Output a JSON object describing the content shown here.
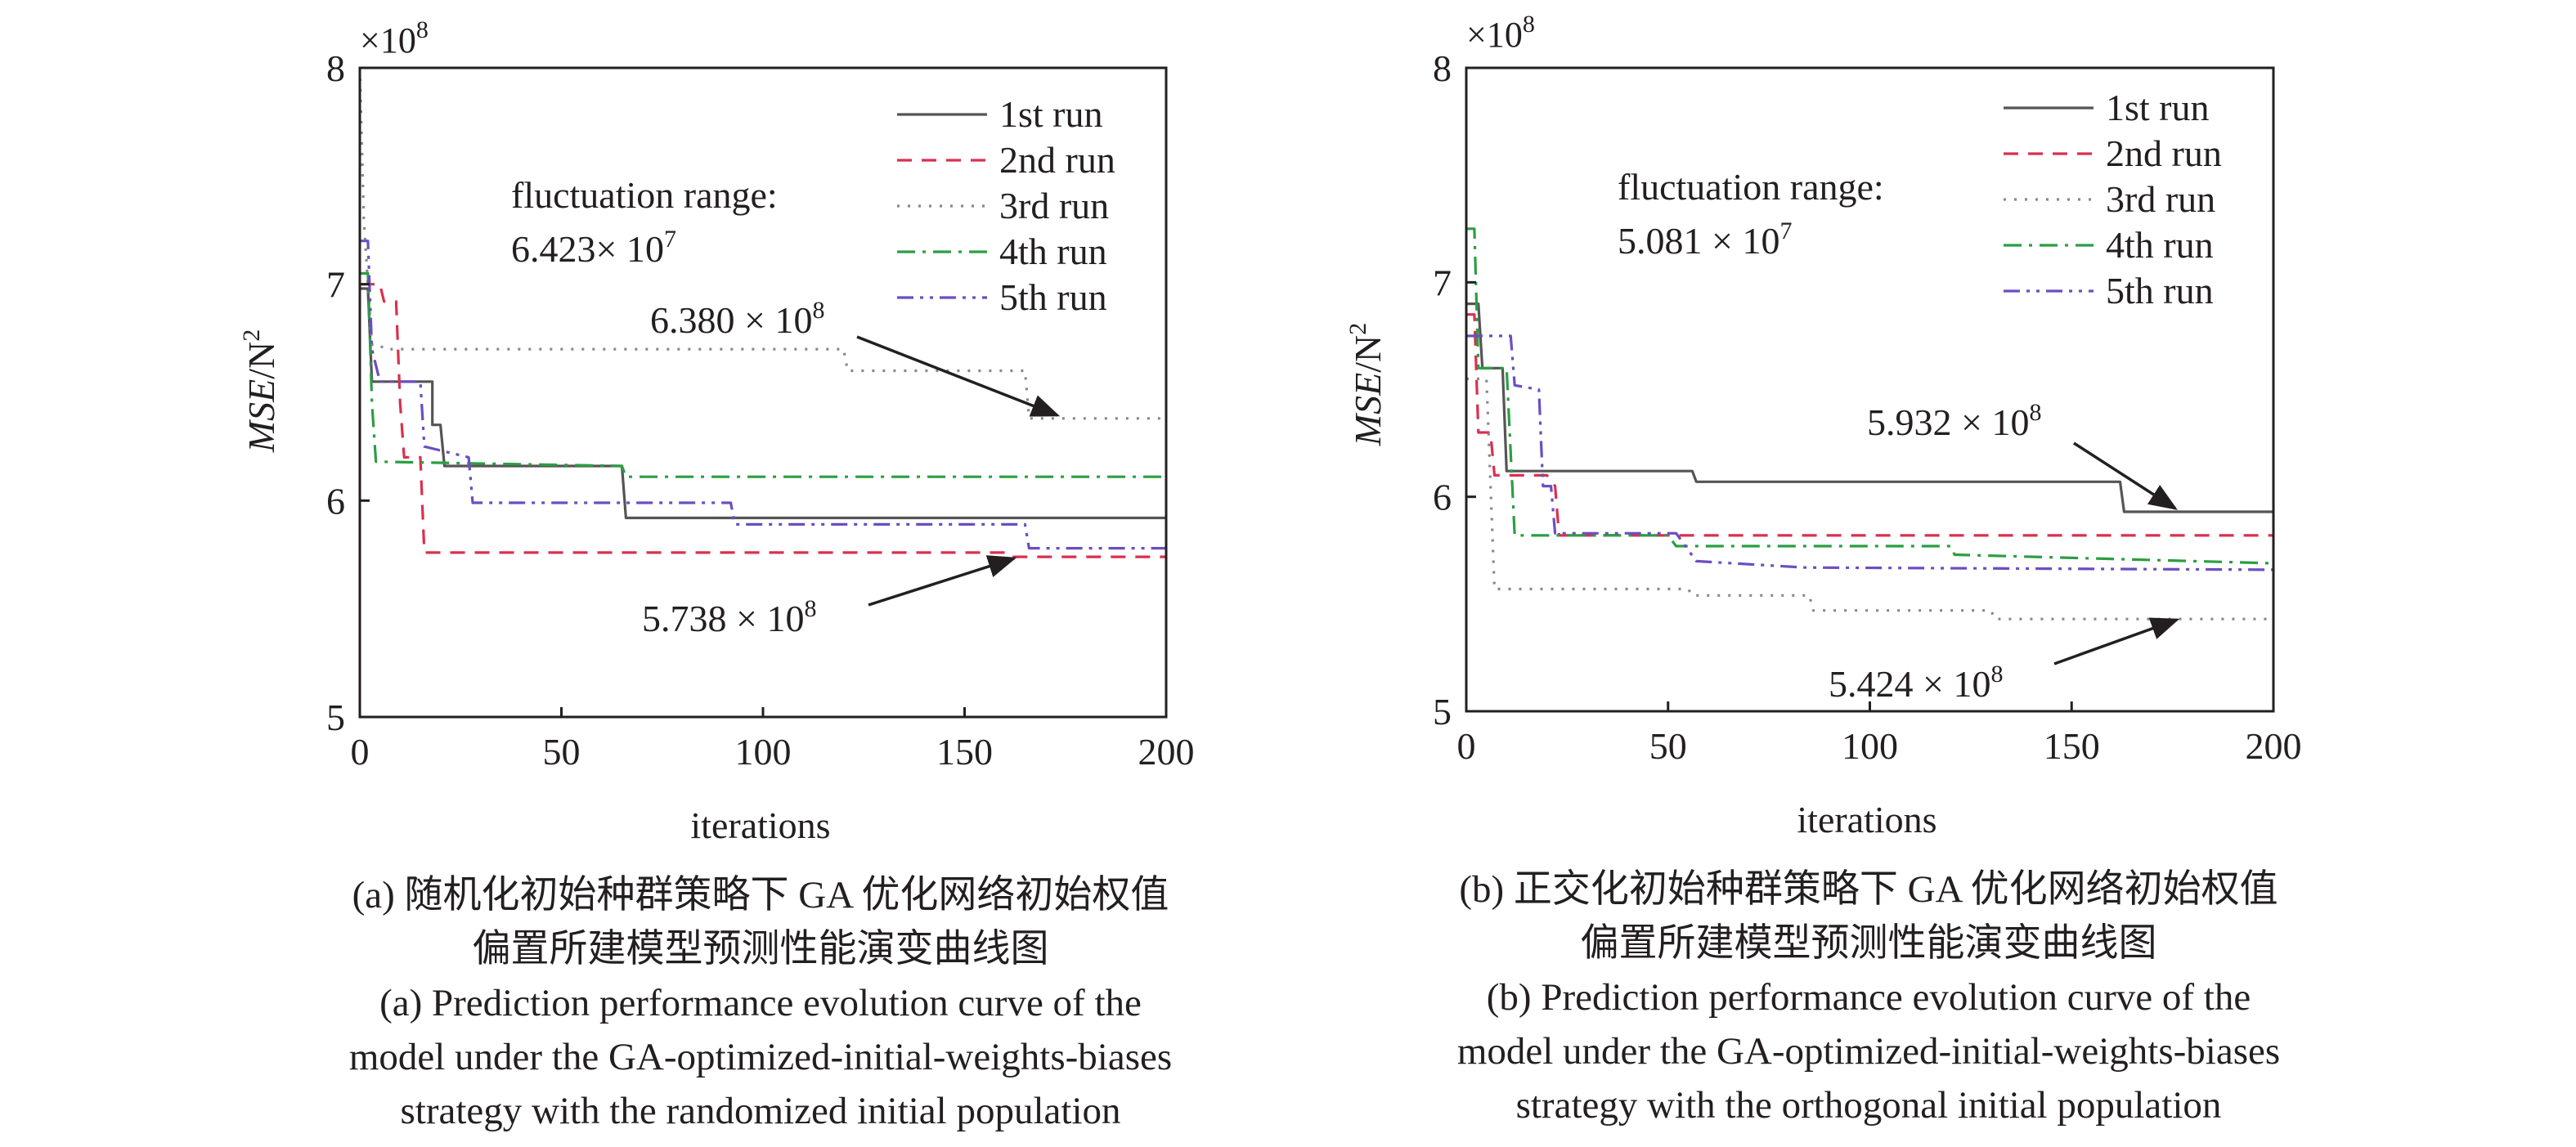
{
  "chart_data": [
    {
      "type": "line",
      "panel": "a",
      "xlabel": "iterations",
      "ylabel_main": "MSE",
      "ylabel_unit": "/N",
      "ylabel_sup": "2",
      "y_multiplier_base": "×10",
      "y_multiplier_exp": "8",
      "xlim": [
        0,
        200
      ],
      "ylim": [
        5,
        8
      ],
      "xticks": [
        "0",
        "50",
        "100",
        "150",
        "200"
      ],
      "yticks": [
        "5",
        "6",
        "7",
        "8"
      ],
      "grid": false,
      "legend_position": "top-right",
      "series": [
        {
          "name": "1st  run",
          "color": "#555555",
          "dash": "solid",
          "points": [
            [
              0,
              6.98
            ],
            [
              2,
              6.98
            ],
            [
              3,
              6.55
            ],
            [
              18,
              6.55
            ],
            [
              18,
              6.35
            ],
            [
              20,
              6.35
            ],
            [
              21,
              6.16
            ],
            [
              65,
              6.16
            ],
            [
              66,
              5.92
            ],
            [
              200,
              5.92
            ]
          ]
        },
        {
          "name": "2nd run",
          "color": "#d9304f",
          "dash": "dashed",
          "points": [
            [
              0,
              7.0
            ],
            [
              5,
              7.0
            ],
            [
              6,
              6.92
            ],
            [
              9,
              6.92
            ],
            [
              10,
              6.45
            ],
            [
              11,
              6.2
            ],
            [
              15,
              6.2
            ],
            [
              16,
              5.76
            ],
            [
              160,
              5.76
            ],
            [
              161,
              5.74
            ],
            [
              200,
              5.74
            ]
          ]
        },
        {
          "name": "3rd run",
          "color": "#888888",
          "dash": "dotted",
          "points": [
            [
              0,
              8.0
            ],
            [
              1,
              7.3
            ],
            [
              2,
              7.0
            ],
            [
              3,
              6.72
            ],
            [
              5,
              6.72
            ],
            [
              6,
              6.7
            ],
            [
              120,
              6.7
            ],
            [
              121,
              6.6
            ],
            [
              165,
              6.6
            ],
            [
              166,
              6.38
            ],
            [
              200,
              6.38
            ]
          ]
        },
        {
          "name": "4th run",
          "color": "#2b9e43",
          "dash": "dashdot",
          "points": [
            [
              0,
              7.05
            ],
            [
              2,
              7.05
            ],
            [
              3,
              6.45
            ],
            [
              4,
              6.18
            ],
            [
              65,
              6.16
            ],
            [
              66,
              6.11
            ],
            [
              200,
              6.11
            ]
          ]
        },
        {
          "name": "5th run",
          "color": "#6b4ec2",
          "dash": "dashdotdot",
          "points": [
            [
              0,
              7.2
            ],
            [
              2,
              7.2
            ],
            [
              3,
              6.7
            ],
            [
              5,
              6.55
            ],
            [
              15,
              6.55
            ],
            [
              16,
              6.25
            ],
            [
              27,
              6.2
            ],
            [
              28,
              5.99
            ],
            [
              92,
              5.99
            ],
            [
              93,
              5.89
            ],
            [
              165,
              5.89
            ],
            [
              166,
              5.78
            ],
            [
              200,
              5.78
            ]
          ]
        }
      ],
      "annotations": {
        "fluct_line1": "fluctuation range:",
        "fluct_val": "6.423× 10",
        "fluct_exp": "7",
        "upper_val": "6.380 × 10",
        "upper_exp": "8",
        "lower_val": "5.738 × 10",
        "lower_exp": "8"
      }
    },
    {
      "type": "line",
      "panel": "b",
      "xlabel": "iterations",
      "ylabel_main": "MSE",
      "ylabel_unit": "/N",
      "ylabel_sup": "2",
      "y_multiplier_base": "×10",
      "y_multiplier_exp": "8",
      "xlim": [
        0,
        200
      ],
      "ylim": [
        5,
        8
      ],
      "xticks": [
        "0",
        "50",
        "100",
        "150",
        "200"
      ],
      "yticks": [
        "5",
        "6",
        "7",
        "8"
      ],
      "grid": false,
      "legend_position": "top-right",
      "series": [
        {
          "name": "1st  run",
          "color": "#555555",
          "dash": "solid",
          "points": [
            [
              0,
              6.9
            ],
            [
              3,
              6.9
            ],
            [
              4,
              6.6
            ],
            [
              9,
              6.6
            ],
            [
              10,
              6.12
            ],
            [
              56,
              6.12
            ],
            [
              57,
              6.07
            ],
            [
              162,
              6.07
            ],
            [
              163,
              5.93
            ],
            [
              200,
              5.93
            ]
          ]
        },
        {
          "name": "2nd run",
          "color": "#d9304f",
          "dash": "dashed",
          "points": [
            [
              0,
              6.85
            ],
            [
              2,
              6.85
            ],
            [
              3,
              6.3
            ],
            [
              6,
              6.3
            ],
            [
              7,
              6.1
            ],
            [
              20,
              6.1
            ],
            [
              22,
              6.05
            ],
            [
              23,
              5.82
            ],
            [
              200,
              5.82
            ]
          ]
        },
        {
          "name": "3rd run",
          "color": "#888888",
          "dash": "dotted",
          "points": [
            [
              0,
              6.55
            ],
            [
              5,
              6.55
            ],
            [
              7,
              5.57
            ],
            [
              55,
              5.57
            ],
            [
              56,
              5.54
            ],
            [
              85,
              5.54
            ],
            [
              86,
              5.47
            ],
            [
              130,
              5.47
            ],
            [
              131,
              5.43
            ],
            [
              200,
              5.43
            ]
          ]
        },
        {
          "name": "4th run",
          "color": "#2b9e43",
          "dash": "dashdot",
          "points": [
            [
              0,
              7.25
            ],
            [
              2,
              7.25
            ],
            [
              3,
              6.6
            ],
            [
              10,
              6.6
            ],
            [
              12,
              5.82
            ],
            [
              50,
              5.82
            ],
            [
              52,
              5.77
            ],
            [
              120,
              5.77
            ],
            [
              121,
              5.73
            ],
            [
              200,
              5.69
            ]
          ]
        },
        {
          "name": "5th run",
          "color": "#6b4ec2",
          "dash": "dashdotdot",
          "points": [
            [
              0,
              6.75
            ],
            [
              11,
              6.75
            ],
            [
              12,
              6.52
            ],
            [
              18,
              6.5
            ],
            [
              19,
              6.05
            ],
            [
              21,
              6.05
            ],
            [
              22,
              5.83
            ],
            [
              52,
              5.83
            ],
            [
              57,
              5.7
            ],
            [
              84,
              5.67
            ],
            [
              200,
              5.66
            ]
          ]
        }
      ],
      "annotations": {
        "fluct_line1": "fluctuation range:",
        "fluct_val": "5.081 × 10",
        "fluct_exp": "7",
        "upper_val": "5.932 × 10",
        "upper_exp": "8",
        "lower_val": "5.424 × 10",
        "lower_exp": "8"
      }
    }
  ],
  "captions": {
    "a": {
      "zh_line1": "(a) 随机化初始种群策略下 GA 优化网络初始权值",
      "zh_line2": "偏置所建模型预测性能演变曲线图",
      "en_line1": "(a) Prediction performance evolution curve of the",
      "en_line2": "model under the GA-optimized-initial-weights-biases",
      "en_line3": "strategy with the randomized initial population"
    },
    "b": {
      "zh_line1": "(b) 正交化初始种群策略下 GA 优化网络初始权值",
      "zh_line2": "偏置所建模型预测性能演变曲线图",
      "en_line1": "(b) Prediction performance evolution curve of the",
      "en_line2": "model under the GA-optimized-initial-weights-biases",
      "en_line3": "strategy with the orthogonal initial population"
    }
  }
}
